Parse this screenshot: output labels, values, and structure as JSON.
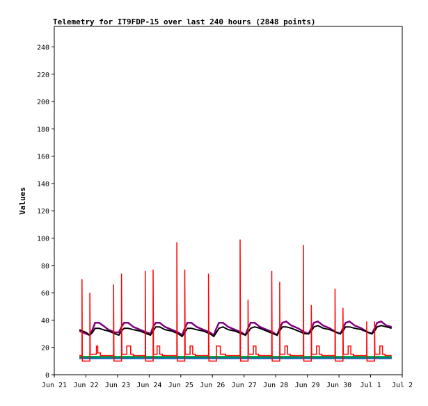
{
  "chart_data": {
    "type": "line",
    "title": "Telemetry for IT9FDP-15 over last 240 hours (2848 points)",
    "xlabel": "",
    "ylabel": "Values",
    "x_start": "Jun 21",
    "x_end": "Jul 2",
    "ylim": [
      0,
      255
    ],
    "xlim_hours": [
      0,
      264
    ],
    "y_ticks": [
      0,
      20,
      40,
      60,
      80,
      100,
      120,
      140,
      160,
      180,
      200,
      220,
      240
    ],
    "x_ticks": [
      {
        "label": "Jun 21",
        "hour": 0
      },
      {
        "label": "Jun 22",
        "hour": 24
      },
      {
        "label": "Jun 23",
        "hour": 48
      },
      {
        "label": "Jun 24",
        "hour": 72
      },
      {
        "label": "Jun 25",
        "hour": 96
      },
      {
        "label": "Jun 26",
        "hour": 120
      },
      {
        "label": "Jun 27",
        "hour": 144
      },
      {
        "label": "Jun 28",
        "hour": 168
      },
      {
        "label": "Jun 29",
        "hour": 192
      },
      {
        "label": "Jun 30",
        "hour": 216
      },
      {
        "label": "Jul 1",
        "hour": 240
      },
      {
        "label": "Jul 2",
        "hour": 264
      }
    ],
    "grid": false,
    "legend": "none",
    "series": [
      {
        "color": "#00cc00",
        "points": [
          [
            19,
            13
          ],
          [
            256,
            13
          ]
        ]
      },
      {
        "color": "#0000ff",
        "points": [
          [
            19,
            12
          ],
          [
            256,
            12
          ]
        ]
      },
      {
        "color": "#008080",
        "points": [
          [
            19,
            12.5
          ],
          [
            256,
            12.5
          ]
        ]
      },
      {
        "color": "#800080",
        "points": [
          [
            19,
            32
          ],
          [
            24,
            30
          ],
          [
            27,
            29
          ],
          [
            29,
            33
          ],
          [
            31,
            38
          ],
          [
            34,
            38
          ],
          [
            37,
            36
          ],
          [
            41,
            33
          ],
          [
            46,
            31
          ],
          [
            49,
            31
          ],
          [
            51,
            35
          ],
          [
            53,
            38
          ],
          [
            56,
            38
          ],
          [
            60,
            35
          ],
          [
            65,
            33
          ],
          [
            70,
            31
          ],
          [
            73,
            30
          ],
          [
            75,
            35
          ],
          [
            77,
            38
          ],
          [
            80,
            38
          ],
          [
            84,
            35
          ],
          [
            89,
            33
          ],
          [
            94,
            31
          ],
          [
            97,
            29
          ],
          [
            99,
            34
          ],
          [
            101,
            38
          ],
          [
            104,
            38
          ],
          [
            108,
            35
          ],
          [
            113,
            33
          ],
          [
            118,
            31
          ],
          [
            121,
            29
          ],
          [
            123,
            34
          ],
          [
            125,
            38
          ],
          [
            128,
            38
          ],
          [
            132,
            35
          ],
          [
            137,
            33
          ],
          [
            142,
            31
          ],
          [
            145,
            29
          ],
          [
            147,
            34
          ],
          [
            149,
            38
          ],
          [
            152,
            38
          ],
          [
            156,
            35
          ],
          [
            161,
            33
          ],
          [
            166,
            31
          ],
          [
            169,
            29
          ],
          [
            171,
            34
          ],
          [
            173,
            38
          ],
          [
            176,
            39
          ],
          [
            180,
            36
          ],
          [
            185,
            34
          ],
          [
            190,
            31
          ],
          [
            193,
            30
          ],
          [
            195,
            34
          ],
          [
            197,
            38
          ],
          [
            200,
            39
          ],
          [
            204,
            36
          ],
          [
            209,
            34
          ],
          [
            214,
            31
          ],
          [
            217,
            30
          ],
          [
            219,
            34
          ],
          [
            221,
            38
          ],
          [
            224,
            39
          ],
          [
            228,
            36
          ],
          [
            233,
            34
          ],
          [
            238,
            31
          ],
          [
            241,
            30
          ],
          [
            243,
            34
          ],
          [
            245,
            38
          ],
          [
            248,
            39
          ],
          [
            252,
            36
          ],
          [
            256,
            35
          ]
        ]
      },
      {
        "color": "#000000",
        "points": [
          [
            19,
            33
          ],
          [
            24,
            31
          ],
          [
            27,
            29
          ],
          [
            29,
            31
          ],
          [
            31,
            34
          ],
          [
            34,
            34
          ],
          [
            37,
            33
          ],
          [
            41,
            32
          ],
          [
            46,
            30
          ],
          [
            49,
            29
          ],
          [
            51,
            32
          ],
          [
            53,
            34
          ],
          [
            56,
            34
          ],
          [
            60,
            33
          ],
          [
            65,
            32
          ],
          [
            70,
            30
          ],
          [
            73,
            29
          ],
          [
            75,
            32
          ],
          [
            77,
            35
          ],
          [
            80,
            35
          ],
          [
            84,
            33
          ],
          [
            89,
            32
          ],
          [
            94,
            30
          ],
          [
            97,
            28
          ],
          [
            99,
            31
          ],
          [
            101,
            34
          ],
          [
            104,
            34
          ],
          [
            108,
            33
          ],
          [
            113,
            32
          ],
          [
            118,
            30
          ],
          [
            121,
            28
          ],
          [
            123,
            31
          ],
          [
            125,
            34
          ],
          [
            128,
            35
          ],
          [
            132,
            33
          ],
          [
            137,
            32
          ],
          [
            142,
            30
          ],
          [
            145,
            29
          ],
          [
            147,
            31
          ],
          [
            149,
            34
          ],
          [
            152,
            35
          ],
          [
            156,
            34
          ],
          [
            161,
            32
          ],
          [
            166,
            30
          ],
          [
            169,
            29
          ],
          [
            171,
            32
          ],
          [
            173,
            35
          ],
          [
            176,
            35
          ],
          [
            180,
            34
          ],
          [
            185,
            32
          ],
          [
            190,
            30
          ],
          [
            193,
            30
          ],
          [
            195,
            32
          ],
          [
            197,
            35
          ],
          [
            200,
            36
          ],
          [
            204,
            34
          ],
          [
            209,
            33
          ],
          [
            214,
            31
          ],
          [
            217,
            30
          ],
          [
            219,
            32
          ],
          [
            221,
            35
          ],
          [
            224,
            35
          ],
          [
            228,
            34
          ],
          [
            233,
            33
          ],
          [
            238,
            31
          ],
          [
            241,
            30
          ],
          [
            243,
            32
          ],
          [
            245,
            35
          ],
          [
            248,
            36
          ],
          [
            252,
            35
          ],
          [
            256,
            34
          ]
        ]
      },
      {
        "color": "#ff0000",
        "points": [
          [
            19,
            14
          ],
          [
            21,
            14
          ],
          [
            21,
            70
          ],
          [
            21.3,
            10
          ],
          [
            27,
            10
          ],
          [
            27,
            60
          ],
          [
            27.3,
            15
          ],
          [
            32,
            15
          ],
          [
            32,
            21
          ],
          [
            33,
            21
          ],
          [
            33,
            16
          ],
          [
            35,
            16
          ],
          [
            35,
            14
          ],
          [
            45,
            14
          ],
          [
            45,
            66
          ],
          [
            45.3,
            10
          ],
          [
            51,
            10
          ],
          [
            51,
            74
          ],
          [
            51.3,
            15
          ],
          [
            55,
            15
          ],
          [
            55,
            21
          ],
          [
            58,
            21
          ],
          [
            58,
            15
          ],
          [
            60,
            15
          ],
          [
            60,
            14
          ],
          [
            69,
            14
          ],
          [
            69,
            76
          ],
          [
            69.3,
            10
          ],
          [
            75,
            10
          ],
          [
            75,
            77
          ],
          [
            75.3,
            15
          ],
          [
            78,
            15
          ],
          [
            78,
            21
          ],
          [
            80,
            21
          ],
          [
            80,
            15
          ],
          [
            82,
            15
          ],
          [
            82,
            14
          ],
          [
            93,
            14
          ],
          [
            93,
            97
          ],
          [
            93.3,
            10
          ],
          [
            99,
            10
          ],
          [
            99,
            77
          ],
          [
            99.3,
            15
          ],
          [
            103,
            15
          ],
          [
            103,
            21
          ],
          [
            105,
            21
          ],
          [
            105,
            15
          ],
          [
            107,
            15
          ],
          [
            107,
            14
          ],
          [
            117,
            14
          ],
          [
            117,
            74
          ],
          [
            117.3,
            10
          ],
          [
            123,
            10
          ],
          [
            123,
            21
          ],
          [
            126,
            21
          ],
          [
            126,
            15
          ],
          [
            130,
            15
          ],
          [
            130,
            14
          ],
          [
            141,
            14
          ],
          [
            141,
            99
          ],
          [
            141.3,
            10
          ],
          [
            147,
            10
          ],
          [
            147,
            55
          ],
          [
            147.3,
            15
          ],
          [
            151,
            15
          ],
          [
            151,
            21
          ],
          [
            153,
            21
          ],
          [
            153,
            15
          ],
          [
            155,
            15
          ],
          [
            155,
            14
          ],
          [
            165,
            14
          ],
          [
            165,
            76
          ],
          [
            165.3,
            10
          ],
          [
            171,
            10
          ],
          [
            171,
            68
          ],
          [
            171.3,
            15
          ],
          [
            175,
            15
          ],
          [
            175,
            21
          ],
          [
            177,
            21
          ],
          [
            177,
            15
          ],
          [
            179,
            15
          ],
          [
            179,
            14
          ],
          [
            189,
            14
          ],
          [
            189,
            95
          ],
          [
            189.3,
            10
          ],
          [
            195,
            10
          ],
          [
            195,
            51
          ],
          [
            195.3,
            15
          ],
          [
            199,
            15
          ],
          [
            199,
            21
          ],
          [
            201,
            21
          ],
          [
            201,
            15
          ],
          [
            203,
            15
          ],
          [
            203,
            14
          ],
          [
            213,
            14
          ],
          [
            213,
            63
          ],
          [
            213.3,
            10
          ],
          [
            219,
            10
          ],
          [
            219,
            49
          ],
          [
            219.3,
            15
          ],
          [
            223,
            15
          ],
          [
            223,
            21
          ],
          [
            225,
            21
          ],
          [
            225,
            15
          ],
          [
            227,
            15
          ],
          [
            227,
            14
          ],
          [
            237,
            14
          ],
          [
            237,
            39
          ],
          [
            237.3,
            10
          ],
          [
            243,
            10
          ],
          [
            243,
            39
          ],
          [
            243.3,
            15
          ],
          [
            247,
            15
          ],
          [
            247,
            21
          ],
          [
            249,
            21
          ],
          [
            249,
            15
          ],
          [
            251,
            15
          ],
          [
            251,
            14
          ],
          [
            256,
            14
          ]
        ]
      }
    ]
  }
}
